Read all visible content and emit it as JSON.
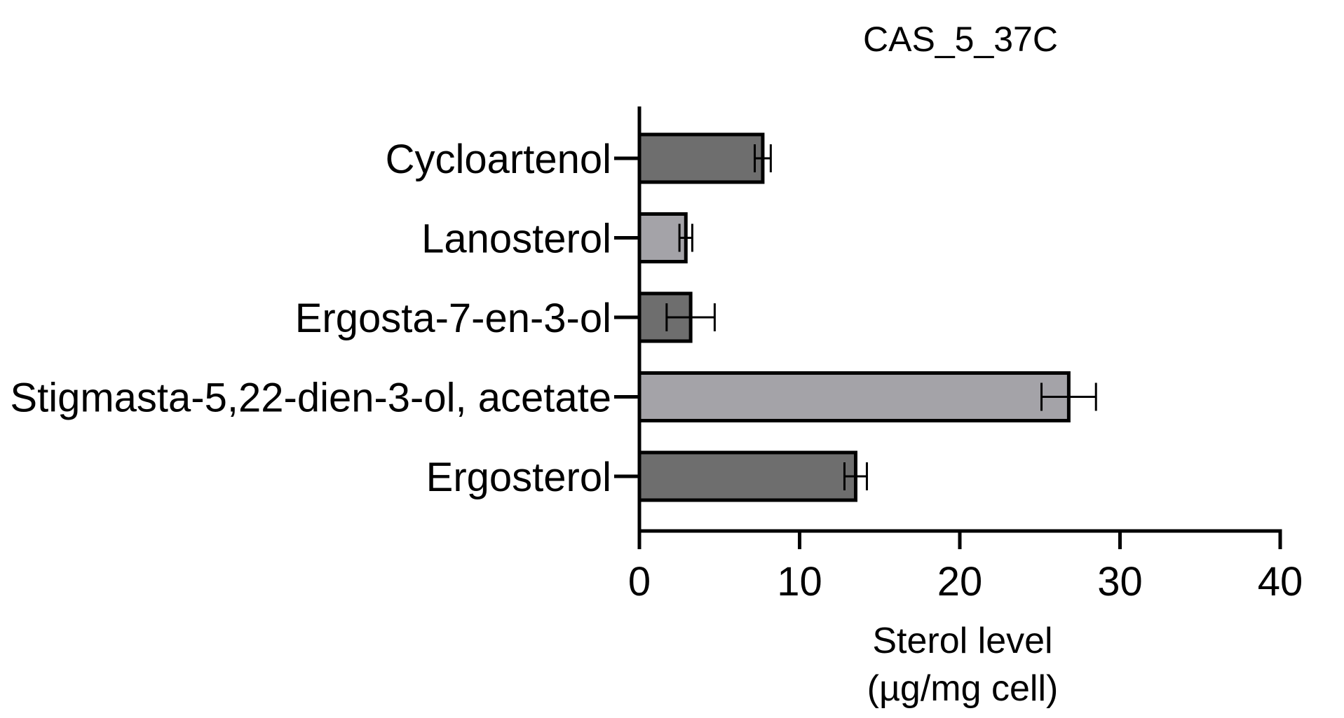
{
  "chart_data": {
    "type": "bar",
    "orientation": "horizontal",
    "title": "CAS_5_37C",
    "categories": [
      "Cycloartenol",
      "Lanosterol",
      "Ergosta-7-en-3-ol",
      "Stigmasta-5,22-dien-3-ol, acetate",
      "Ergosterol"
    ],
    "values": [
      7.7,
      2.9,
      3.2,
      26.8,
      13.5
    ],
    "errors": [
      0.5,
      0.4,
      1.5,
      1.7,
      0.7
    ],
    "bar_colors": [
      "#6e6e6e",
      "#a4a3a8",
      "#6e6e6e",
      "#a4a3a8",
      "#6e6e6e"
    ],
    "xlabel_lines": [
      "Sterol level",
      "(µg/mg cell)"
    ],
    "ylabel": "",
    "xlim": [
      0,
      40
    ],
    "xticks": [
      0,
      10,
      20,
      30,
      40
    ],
    "grid": false,
    "legend": "none"
  }
}
